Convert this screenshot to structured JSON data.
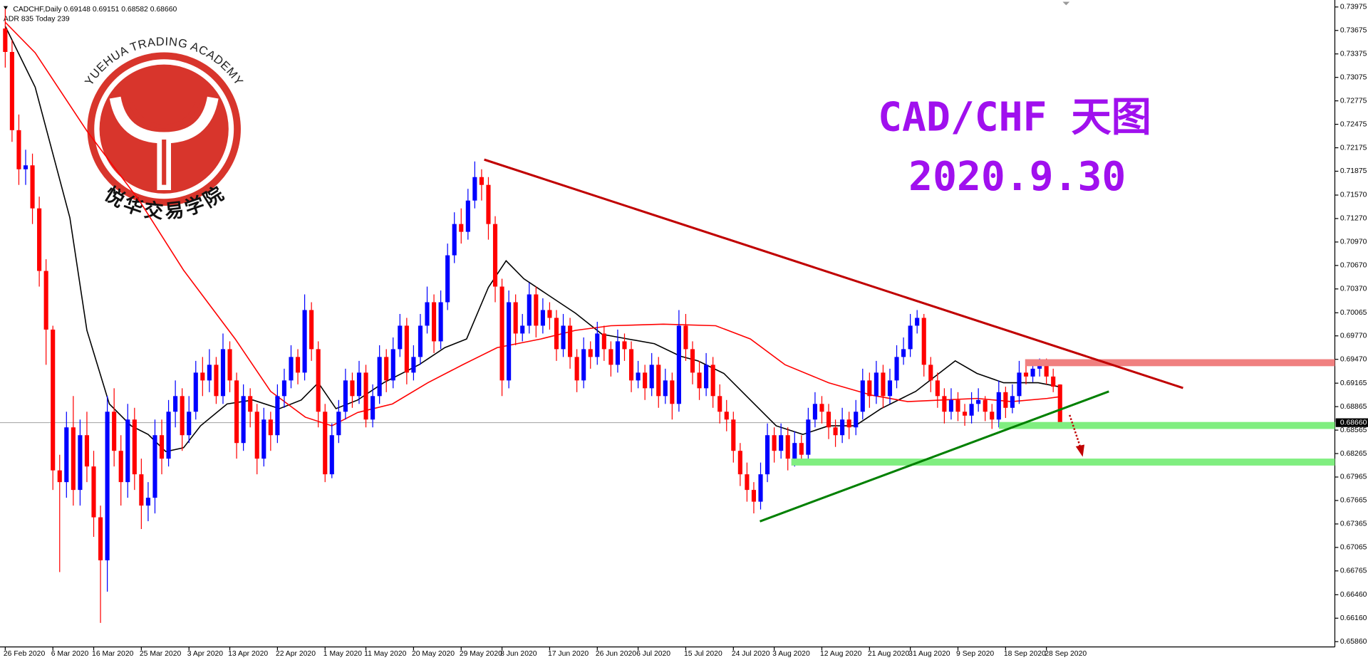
{
  "header": {
    "info": "CADCHF,Daily  0.69148 0.69151 0.68582 0.68660",
    "indicator": "ADR 835  Today 239"
  },
  "watermark": {
    "title": "CAD/CHF 天图",
    "date": "2020.9.30"
  },
  "logo": {
    "name_en": "YUEHUA TRADING ACADEMY",
    "name_cn": "悦华交易学院"
  },
  "chart_data": {
    "type": "candlestick",
    "up_color": "#0000ff",
    "down_color": "#ff0000",
    "ylim": [
      0.65793,
      0.74064
    ],
    "yticks": [
      0.73975,
      0.73675,
      0.73375,
      0.73075,
      0.72775,
      0.72475,
      0.72175,
      0.71875,
      {
        "value": 0.7157,
        "label": "0.71570"
      },
      {
        "value": 0.7127,
        "label": "0.71270"
      },
      {
        "value": 0.7097,
        "label": "0.70970"
      },
      {
        "value": 0.7067,
        "label": "0.70670"
      },
      {
        "value": 0.7037,
        "label": "0.70370"
      },
      0.70065,
      {
        "value": 0.6977,
        "label": "0.69770"
      },
      {
        "value": 0.6947,
        "label": "0.69470"
      },
      0.69165,
      0.68865,
      0.68565,
      0.68265,
      0.67965,
      0.67665,
      0.67365,
      0.67065,
      0.66765,
      {
        "value": 0.6646,
        "label": "0.66460"
      },
      {
        "value": 0.6616,
        "label": "0.66160"
      },
      {
        "value": 0.6586,
        "label": "0.65860"
      }
    ],
    "current_price": {
      "value": 0.6866,
      "label": "0.68660"
    },
    "categories": [
      "26 Feb 2020",
      null,
      null,
      null,
      null,
      null,
      null,
      "6 Mar 2020",
      null,
      null,
      null,
      null,
      null,
      "16 Mar 2020",
      null,
      null,
      null,
      null,
      null,
      null,
      "25 Mar 2020",
      null,
      null,
      null,
      null,
      null,
      null,
      "3 Apr 2020",
      null,
      null,
      null,
      null,
      null,
      "13 Apr 2020",
      null,
      null,
      null,
      null,
      null,
      null,
      "22 Apr 2020",
      null,
      null,
      null,
      null,
      null,
      null,
      "1 May 2020",
      null,
      null,
      null,
      null,
      null,
      "11 May 2020",
      null,
      null,
      null,
      null,
      null,
      null,
      "20 May 2020",
      null,
      null,
      null,
      null,
      null,
      null,
      "29 May 2020",
      null,
      null,
      null,
      null,
      null,
      "8 Jun 2020",
      null,
      null,
      null,
      null,
      null,
      null,
      "17 Jun 2020",
      null,
      null,
      null,
      null,
      null,
      null,
      "26 Jun 2020",
      null,
      null,
      null,
      null,
      null,
      "6 Jul 2020",
      null,
      null,
      null,
      null,
      null,
      null,
      "15 Jul 2020",
      null,
      null,
      null,
      null,
      null,
      null,
      "24 Jul 2020",
      null,
      null,
      null,
      null,
      null,
      "3 Aug 2020",
      null,
      null,
      null,
      null,
      null,
      null,
      "12 Aug 2020",
      null,
      null,
      null,
      null,
      null,
      null,
      "21 Aug 2020",
      null,
      null,
      null,
      null,
      null,
      "31 Aug 2020",
      null,
      null,
      null,
      null,
      null,
      null,
      "9 Sep 2020",
      null,
      null,
      null,
      null,
      null,
      null,
      "18 Sep 2020",
      null,
      null,
      null,
      null,
      null,
      "28 Sep 2020",
      null,
      null
    ],
    "candles": [
      [
        0.737,
        0.7395,
        0.732,
        0.734
      ],
      [
        0.734,
        0.7355,
        0.7225,
        0.724
      ],
      [
        0.724,
        0.726,
        0.717,
        0.719
      ],
      [
        0.719,
        0.7215,
        0.717,
        0.7195
      ],
      [
        0.7195,
        0.721,
        0.712,
        0.714
      ],
      [
        0.714,
        0.7155,
        0.704,
        0.706
      ],
      [
        0.706,
        0.7075,
        0.694,
        0.6985
      ],
      [
        0.6985,
        0.699,
        0.678,
        0.6805
      ],
      [
        0.6805,
        0.6825,
        0.6675,
        0.679
      ],
      [
        0.679,
        0.688,
        0.677,
        0.686
      ],
      [
        0.686,
        0.69,
        0.676,
        0.678
      ],
      [
        0.678,
        0.687,
        0.676,
        0.685
      ],
      [
        0.685,
        0.688,
        0.679,
        0.681
      ],
      [
        0.681,
        0.683,
        0.672,
        0.6745
      ],
      [
        0.6745,
        0.676,
        0.661,
        0.669
      ],
      [
        0.669,
        0.69,
        0.665,
        0.688
      ],
      [
        0.688,
        0.691,
        0.681,
        0.683
      ],
      [
        0.683,
        0.685,
        0.676,
        0.679
      ],
      [
        0.679,
        0.689,
        0.677,
        0.687
      ],
      [
        0.687,
        0.6885,
        0.678,
        0.68
      ],
      [
        0.68,
        0.682,
        0.673,
        0.676
      ],
      [
        0.676,
        0.679,
        0.674,
        0.677
      ],
      [
        0.677,
        0.687,
        0.675,
        0.685
      ],
      [
        0.685,
        0.687,
        0.68,
        0.682
      ],
      [
        0.682,
        0.6895,
        0.681,
        0.688
      ],
      [
        0.688,
        0.692,
        0.686,
        0.69
      ],
      [
        0.69,
        0.691,
        0.683,
        0.685
      ],
      [
        0.685,
        0.69,
        0.684,
        0.688
      ],
      [
        0.688,
        0.6945,
        0.687,
        0.693
      ],
      [
        0.693,
        0.695,
        0.69,
        0.692
      ],
      [
        0.692,
        0.696,
        0.6905,
        0.694
      ],
      [
        0.694,
        0.695,
        0.689,
        0.69
      ],
      [
        0.69,
        0.698,
        0.689,
        0.696
      ],
      [
        0.696,
        0.697,
        0.6905,
        0.692
      ],
      [
        0.692,
        0.693,
        0.682,
        0.684
      ],
      [
        0.684,
        0.6915,
        0.683,
        0.69
      ],
      [
        0.69,
        0.691,
        0.686,
        0.688
      ],
      [
        0.688,
        0.689,
        0.68,
        0.682
      ],
      [
        0.682,
        0.6885,
        0.681,
        0.687
      ],
      [
        0.687,
        0.688,
        0.683,
        0.685
      ],
      [
        0.685,
        0.6915,
        0.684,
        0.69
      ],
      [
        0.69,
        0.6935,
        0.6885,
        0.692
      ],
      [
        0.692,
        0.6965,
        0.691,
        0.695
      ],
      [
        0.695,
        0.696,
        0.6915,
        0.693
      ],
      [
        0.693,
        0.703,
        0.692,
        0.701
      ],
      [
        0.701,
        0.702,
        0.6945,
        0.696
      ],
      [
        0.696,
        0.697,
        0.686,
        0.688
      ],
      [
        0.688,
        0.689,
        0.679,
        0.68
      ],
      [
        0.68,
        0.6865,
        0.6795,
        0.685
      ],
      [
        0.685,
        0.6895,
        0.684,
        0.688
      ],
      [
        0.688,
        0.6935,
        0.687,
        0.692
      ],
      [
        0.692,
        0.693,
        0.6885,
        0.69
      ],
      [
        0.69,
        0.6945,
        0.689,
        0.693
      ],
      [
        0.693,
        0.694,
        0.686,
        0.687
      ],
      [
        0.687,
        0.6915,
        0.686,
        0.69
      ],
      [
        0.69,
        0.6965,
        0.689,
        0.695
      ],
      [
        0.695,
        0.696,
        0.6905,
        0.692
      ],
      [
        0.692,
        0.6975,
        0.691,
        0.696
      ],
      [
        0.696,
        0.7005,
        0.695,
        0.699
      ],
      [
        0.699,
        0.7,
        0.6915,
        0.693
      ],
      [
        0.693,
        0.6965,
        0.692,
        0.695
      ],
      [
        0.695,
        0.7005,
        0.694,
        0.699
      ],
      [
        0.699,
        0.704,
        0.698,
        0.702
      ],
      [
        0.702,
        0.703,
        0.6955,
        0.697
      ],
      [
        0.697,
        0.7035,
        0.696,
        0.702
      ],
      [
        0.702,
        0.7095,
        0.701,
        0.708
      ],
      [
        0.708,
        0.7135,
        0.707,
        0.712
      ],
      [
        0.712,
        0.714,
        0.7095,
        0.711
      ],
      [
        0.711,
        0.7165,
        0.71,
        0.715
      ],
      [
        0.715,
        0.72,
        0.714,
        0.718
      ],
      [
        0.718,
        0.719,
        0.715,
        0.717
      ],
      [
        0.717,
        0.718,
        0.71,
        0.712
      ],
      [
        0.712,
        0.713,
        0.702,
        0.704
      ],
      [
        0.704,
        0.705,
        0.69,
        0.692
      ],
      [
        0.692,
        0.7035,
        0.691,
        0.702
      ],
      [
        0.702,
        0.703,
        0.6965,
        0.698
      ],
      [
        0.698,
        0.7005,
        0.697,
        0.699
      ],
      [
        0.699,
        0.7045,
        0.698,
        0.703
      ],
      [
        0.703,
        0.704,
        0.6975,
        0.699
      ],
      [
        0.699,
        0.7025,
        0.698,
        0.701
      ],
      [
        0.701,
        0.702,
        0.6985,
        0.7
      ],
      [
        0.7,
        0.701,
        0.6945,
        0.696
      ],
      [
        0.696,
        0.7005,
        0.695,
        0.699
      ],
      [
        0.699,
        0.7,
        0.6935,
        0.695
      ],
      [
        0.695,
        0.696,
        0.6905,
        0.692
      ],
      [
        0.692,
        0.6975,
        0.691,
        0.696
      ],
      [
        0.696,
        0.697,
        0.6935,
        0.695
      ],
      [
        0.695,
        0.6995,
        0.694,
        0.698
      ],
      [
        0.698,
        0.699,
        0.6945,
        0.696
      ],
      [
        0.696,
        0.697,
        0.6925,
        0.694
      ],
      [
        0.694,
        0.6985,
        0.693,
        0.697
      ],
      [
        0.697,
        0.698,
        0.6945,
        0.696
      ],
      [
        0.696,
        0.697,
        0.6905,
        0.692
      ],
      [
        0.692,
        0.6945,
        0.691,
        0.693
      ],
      [
        0.693,
        0.694,
        0.6895,
        0.691
      ],
      [
        0.691,
        0.6955,
        0.69,
        0.694
      ],
      [
        0.694,
        0.695,
        0.6885,
        0.69
      ],
      [
        0.69,
        0.6935,
        0.689,
        0.692
      ],
      [
        0.692,
        0.693,
        0.687,
        0.689
      ],
      [
        0.689,
        0.701,
        0.688,
        0.699
      ],
      [
        0.699,
        0.7005,
        0.6945,
        0.696
      ],
      [
        0.696,
        0.697,
        0.6915,
        0.693
      ],
      [
        0.693,
        0.6945,
        0.6895,
        0.691
      ],
      [
        0.691,
        0.6955,
        0.69,
        0.694
      ],
      [
        0.694,
        0.695,
        0.6885,
        0.69
      ],
      [
        0.69,
        0.6915,
        0.6865,
        0.688
      ],
      [
        0.688,
        0.6895,
        0.6855,
        0.687
      ],
      [
        0.687,
        0.688,
        0.6815,
        0.683
      ],
      [
        0.683,
        0.684,
        0.6785,
        0.68
      ],
      [
        0.68,
        0.6815,
        0.6765,
        0.678
      ],
      [
        0.678,
        0.679,
        0.675,
        0.6765
      ],
      [
        0.6765,
        0.6815,
        0.6755,
        0.68
      ],
      [
        0.68,
        0.6865,
        0.679,
        0.685
      ],
      [
        0.685,
        0.686,
        0.6815,
        0.683
      ],
      [
        0.683,
        0.6865,
        0.682,
        0.685
      ],
      [
        0.685,
        0.686,
        0.6805,
        0.682
      ],
      [
        0.682,
        0.6855,
        0.681,
        0.684
      ],
      [
        0.684,
        0.685,
        0.6812,
        0.6825
      ],
      [
        0.6825,
        0.6885,
        0.6815,
        0.687
      ],
      [
        0.687,
        0.6905,
        0.686,
        0.689
      ],
      [
        0.689,
        0.69,
        0.6865,
        0.688
      ],
      [
        0.688,
        0.689,
        0.6845,
        0.686
      ],
      [
        0.686,
        0.687,
        0.6835,
        0.685
      ],
      [
        0.685,
        0.6885,
        0.684,
        0.687
      ],
      [
        0.687,
        0.688,
        0.6845,
        0.686
      ],
      [
        0.686,
        0.6895,
        0.685,
        0.688
      ],
      [
        0.688,
        0.6935,
        0.687,
        0.692
      ],
      [
        0.692,
        0.693,
        0.6885,
        0.69
      ],
      [
        0.69,
        0.6945,
        0.689,
        0.693
      ],
      [
        0.693,
        0.694,
        0.6885,
        0.69
      ],
      [
        0.69,
        0.6935,
        0.689,
        0.692
      ],
      [
        0.692,
        0.6965,
        0.691,
        0.695
      ],
      [
        0.695,
        0.6975,
        0.694,
        0.696
      ],
      [
        0.696,
        0.7005,
        0.695,
        0.699
      ],
      [
        0.699,
        0.701,
        0.698,
        0.7
      ],
      [
        0.7,
        0.7005,
        0.6925,
        0.694
      ],
      [
        0.694,
        0.695,
        0.6905,
        0.692
      ],
      [
        0.692,
        0.693,
        0.6885,
        0.69
      ],
      [
        0.69,
        0.691,
        0.6865,
        0.688
      ],
      [
        0.688,
        0.691,
        0.687,
        0.6895
      ],
      [
        0.6895,
        0.6905,
        0.6868,
        0.688
      ],
      [
        0.688,
        0.689,
        0.6862,
        0.6875
      ],
      [
        0.6875,
        0.6905,
        0.6865,
        0.689
      ],
      [
        0.689,
        0.691,
        0.688,
        0.6895
      ],
      [
        0.6895,
        0.69,
        0.6868,
        0.688
      ],
      [
        0.688,
        0.689,
        0.6858,
        0.687
      ],
      [
        0.687,
        0.692,
        0.686,
        0.6905
      ],
      [
        0.6905,
        0.6912,
        0.6872,
        0.6885
      ],
      [
        0.6885,
        0.6915,
        0.6878,
        0.69
      ],
      [
        0.69,
        0.6945,
        0.689,
        0.693
      ],
      [
        0.693,
        0.694,
        0.6915,
        0.6925
      ],
      [
        0.6925,
        0.6945,
        0.6918,
        0.6935
      ],
      [
        0.6935,
        0.6948,
        0.6925,
        0.694
      ],
      [
        0.694,
        0.6948,
        0.6915,
        0.6925
      ],
      [
        0.6925,
        0.6935,
        0.6905,
        0.6912
      ],
      [
        0.69148,
        0.69151,
        0.68582,
        0.6866
      ]
    ],
    "lines": [
      {
        "color": "#000000",
        "x": [
          0,
          4.4,
          9.5,
          12,
          15.3,
          18.5,
          21,
          23.6,
          26.2,
          28.7,
          32.6,
          36.4,
          40.3,
          43.5,
          46,
          48.6,
          51.8,
          55.6,
          60.8,
          64.6,
          67.8,
          71,
          73.6,
          76.2,
          80,
          83.8,
          87.7,
          91.5,
          95.4,
          99.2,
          101.8,
          105.6,
          109.5,
          113.3,
          117.2,
          121,
          124.9,
          128.7,
          133.8,
          139.6,
          142.8,
          146.7,
          151.8,
          154.8
        ],
        "values": [
          0.7373,
          0.7295,
          0.7128,
          0.6984,
          0.689,
          0.6862,
          0.6851,
          0.6829,
          0.6834,
          0.6862,
          0.689,
          0.6895,
          0.6884,
          0.6895,
          0.6917,
          0.6884,
          0.6895,
          0.6917,
          0.694,
          0.6962,
          0.6973,
          0.7039,
          0.7073,
          0.705,
          0.7028,
          0.7006,
          0.6979,
          0.6973,
          0.6967,
          0.6951,
          0.6945,
          0.6929,
          0.6895,
          0.6862,
          0.6851,
          0.6862,
          0.6862,
          0.6884,
          0.6906,
          0.6945,
          0.6929,
          0.6917,
          0.6917,
          0.6912
        ]
      },
      {
        "color": "#ff0000",
        "x": [
          0,
          4.4,
          12,
          19.7,
          26.2,
          33.8,
          39,
          44.1,
          48,
          51.8,
          56.9,
          62.1,
          67.2,
          72.3,
          78.7,
          83.8,
          89,
          96.7,
          104.4,
          109.5,
          114.6,
          121,
          127.4,
          132.6,
          137.7,
          142.8,
          147.9,
          153.1,
          154.8
        ],
        "values": [
          0.7378,
          0.7339,
          0.7239,
          0.715,
          0.7061,
          0.6973,
          0.6906,
          0.6873,
          0.6862,
          0.6879,
          0.689,
          0.6917,
          0.694,
          0.6962,
          0.6973,
          0.6984,
          0.699,
          0.6992,
          0.699,
          0.6973,
          0.694,
          0.6917,
          0.6901,
          0.6893,
          0.6895,
          0.6897,
          0.6893,
          0.6897,
          0.6899
        ]
      }
    ]
  }
}
